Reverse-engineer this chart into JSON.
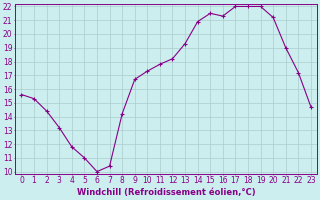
{
  "x": [
    0,
    1,
    2,
    3,
    4,
    5,
    6,
    7,
    8,
    9,
    10,
    11,
    12,
    13,
    14,
    15,
    16,
    17,
    18,
    19,
    20,
    21,
    22,
    23
  ],
  "y": [
    15.6,
    15.3,
    14.4,
    13.2,
    11.8,
    11.0,
    10.0,
    10.4,
    14.2,
    16.7,
    17.3,
    17.8,
    18.2,
    19.3,
    20.9,
    21.5,
    21.3,
    22.0,
    22.0,
    22.0,
    21.2,
    19.0,
    17.2,
    14.7
  ],
  "line_color": "#880088",
  "marker": "+",
  "marker_size": 3,
  "bg_color": "#cceeee",
  "grid_color": "#aacccc",
  "xlabel": "Windchill (Refroidissement éolien,°C)",
  "xlabel_color": "#880088",
  "tick_color": "#880088",
  "spine_color": "#880088",
  "ylim": [
    10,
    22
  ],
  "xlim": [
    -0.5,
    23.5
  ],
  "yticks": [
    10,
    11,
    12,
    13,
    14,
    15,
    16,
    17,
    18,
    19,
    20,
    21,
    22
  ],
  "xticks": [
    0,
    1,
    2,
    3,
    4,
    5,
    6,
    7,
    8,
    9,
    10,
    11,
    12,
    13,
    14,
    15,
    16,
    17,
    18,
    19,
    20,
    21,
    22,
    23
  ],
  "label_fontsize": 6,
  "tick_fontsize": 5.5,
  "linewidth": 0.8,
  "marker_edge_width": 0.8
}
